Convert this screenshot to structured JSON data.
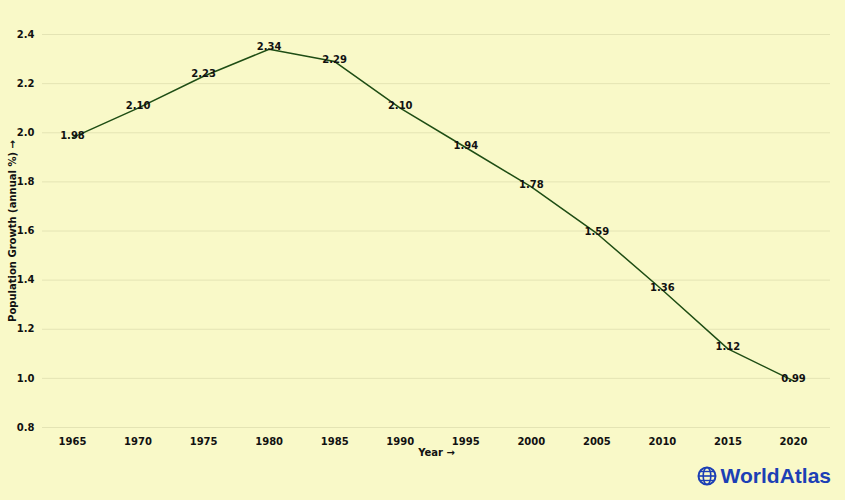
{
  "chart_data": {
    "type": "line",
    "x_label": "Year",
    "y_label": "Population Growth (annual %)",
    "annotation": "WorldAtlas",
    "x": [
      1965,
      1970,
      1975,
      1980,
      1985,
      1990,
      1995,
      2000,
      2005,
      2010,
      2015,
      2020
    ],
    "values": [
      1.98,
      2.1,
      2.23,
      2.34,
      2.29,
      2.1,
      1.94,
      1.78,
      1.59,
      1.36,
      1.12,
      0.99
    ],
    "value_labels": [
      "1.98",
      "2.10",
      "2.23",
      "2.34",
      "2.29",
      "2.10",
      "1.94",
      "1.78",
      "1.59",
      "1.36",
      "1.12",
      "0.99"
    ],
    "color": "#1e4d14",
    "xlim": [
      1965,
      2020
    ],
    "xticks": [
      1965,
      1970,
      1975,
      1980,
      1985,
      1990,
      1995,
      2000,
      2005,
      2010,
      2015,
      2020
    ],
    "ylim": [
      0.8,
      2.4
    ],
    "yticks": [
      0.8,
      {
        "value": 1,
        "label": "1.0"
      },
      1.2,
      1.4,
      1.6,
      1.8,
      {
        "value": 2,
        "label": "2.0"
      },
      2.2,
      2.4
    ],
    "grid": true,
    "data_labels": true
  }
}
